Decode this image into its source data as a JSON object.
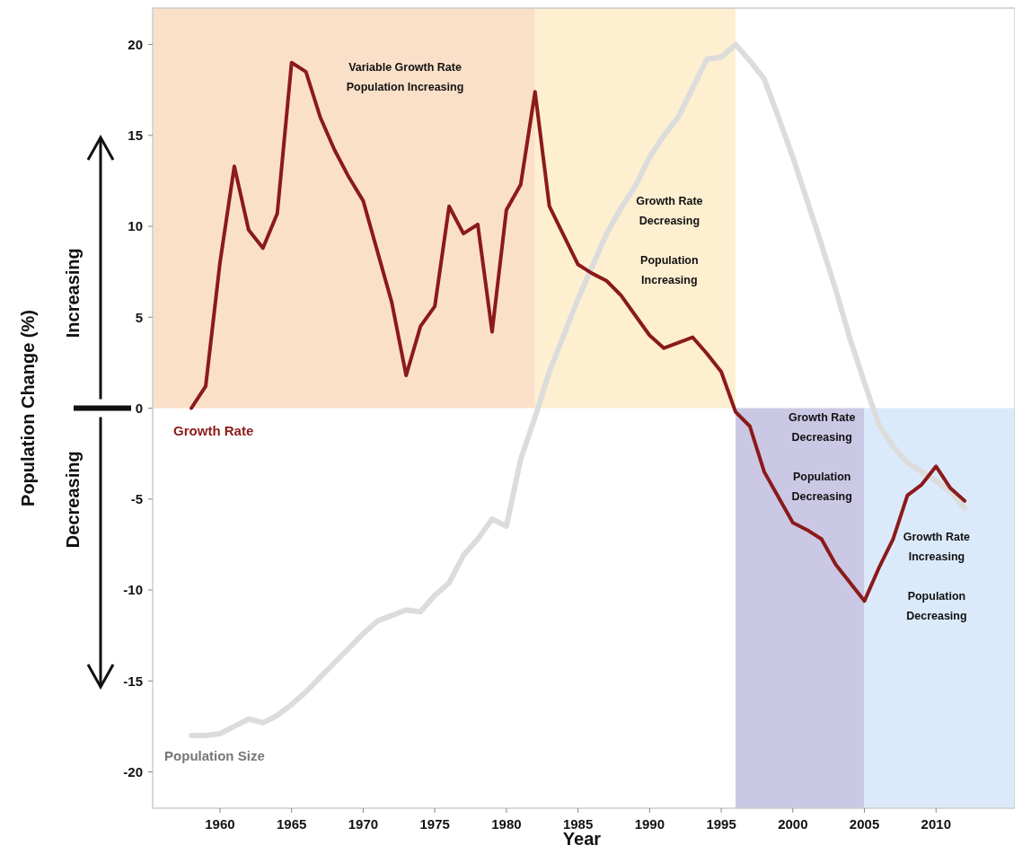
{
  "chart_data": {
    "type": "line",
    "xlabel": "Year",
    "ylabel": "Population Change (%)",
    "xlim": [
      1955.3,
      2015.5
    ],
    "ylim": [
      -22,
      22
    ],
    "xticks": [
      1960,
      1965,
      1970,
      1975,
      1980,
      1985,
      1990,
      1995,
      2000,
      2005,
      2010
    ],
    "yticks": [
      -20,
      -15,
      -10,
      -5,
      0,
      5,
      10,
      15,
      20
    ],
    "grid": false,
    "marker": "none",
    "line_style": "solid",
    "series": [
      {
        "name": "Population Size",
        "color": "#dcdcdc",
        "x": [
          1958,
          1959,
          1960,
          1961,
          1962,
          1963,
          1964,
          1965,
          1966,
          1967,
          1968,
          1969,
          1970,
          1971,
          1972,
          1973,
          1974,
          1975,
          1976,
          1977,
          1978,
          1979,
          1980,
          1981,
          1982,
          1983,
          1984,
          1985,
          1986,
          1987,
          1988,
          1989,
          1990,
          1991,
          1992,
          1993,
          1994,
          1995,
          1996,
          1997,
          1998,
          1999,
          2000,
          2001,
          2002,
          2003,
          2004,
          2005,
          2006,
          2007,
          2008,
          2009,
          2010,
          2011,
          2012
        ],
        "values": [
          -18,
          -18,
          -17.9,
          -17.5,
          -17.1,
          -17.3,
          -16.9,
          -16.3,
          -15.6,
          -14.8,
          -14,
          -13.2,
          -12.4,
          -11.7,
          -11.4,
          -11.1,
          -11.2,
          -10.3,
          -9.6,
          -8.1,
          -7.2,
          -6.1,
          -6.5,
          -2.8,
          -0.5,
          2,
          4,
          6,
          7.8,
          9.6,
          11,
          12.2,
          13.8,
          15,
          16,
          17.6,
          19.2,
          19.3,
          20,
          19.1,
          18.1,
          16,
          13.8,
          11.4,
          9,
          6.5,
          3.8,
          1.4,
          -0.9,
          -2.1,
          -3,
          -3.5,
          -4,
          -4.6,
          -5.5
        ]
      },
      {
        "name": "Growth Rate",
        "color": "#8b1a1a",
        "x": [
          1958,
          1959,
          1960,
          1961,
          1962,
          1963,
          1964,
          1965,
          1966,
          1967,
          1968,
          1969,
          1970,
          1971,
          1972,
          1973,
          1974,
          1975,
          1976,
          1977,
          1978,
          1979,
          1980,
          1981,
          1982,
          1983,
          1984,
          1985,
          1986,
          1987,
          1988,
          1989,
          1990,
          1991,
          1992,
          1993,
          1994,
          1995,
          1996,
          1997,
          1998,
          1999,
          2000,
          2001,
          2002,
          2003,
          2004,
          2005,
          2006,
          2007,
          2008,
          2009,
          2010,
          2011,
          2012
        ],
        "values": [
          0,
          1.2,
          8,
          13.3,
          9.8,
          8.8,
          10.7,
          19,
          18.5,
          16,
          14.2,
          12.7,
          11.4,
          8.6,
          5.8,
          1.8,
          4.5,
          5.6,
          11.1,
          9.6,
          10.1,
          4.2,
          10.9,
          12.3,
          17.4,
          11.1,
          9.5,
          7.9,
          7.4,
          7,
          6.2,
          5.1,
          4,
          3.3,
          3.6,
          3.9,
          3,
          2,
          -0.2,
          -1,
          -3.5,
          -4.9,
          -6.3,
          -6.7,
          -7.2,
          -8.6,
          -9.6,
          -10.6,
          -8.8,
          -7.2,
          -4.8,
          -4.2,
          -3.2,
          -4.4,
          -5.1
        ]
      }
    ],
    "bands": [
      {
        "axis": "x",
        "from": 1955.3,
        "to": 1982,
        "color": "#fbe0c9",
        "label": "Variable Growth Rate\nPopulation Increasing"
      },
      {
        "axis": "x",
        "from": 1982,
        "to": 1996,
        "color": "#fdefd0",
        "label": "Growth Rate\nDecreasing\n\nPopulation\nIncreasing"
      },
      {
        "axis": "x",
        "from": 1996,
        "to": 2005,
        "color": "#cac8e4",
        "label": "Growth Rate\nDecreasing\n\nPopulation\nDecreasing"
      },
      {
        "axis": "x",
        "from": 2005,
        "to": 2015.5,
        "color": "#dbeafa",
        "label": "Growth Rate\nIncreasing\n\nPopulation\nDecreasing"
      }
    ],
    "annotations": [
      "Increasing",
      "Decreasing"
    ]
  }
}
